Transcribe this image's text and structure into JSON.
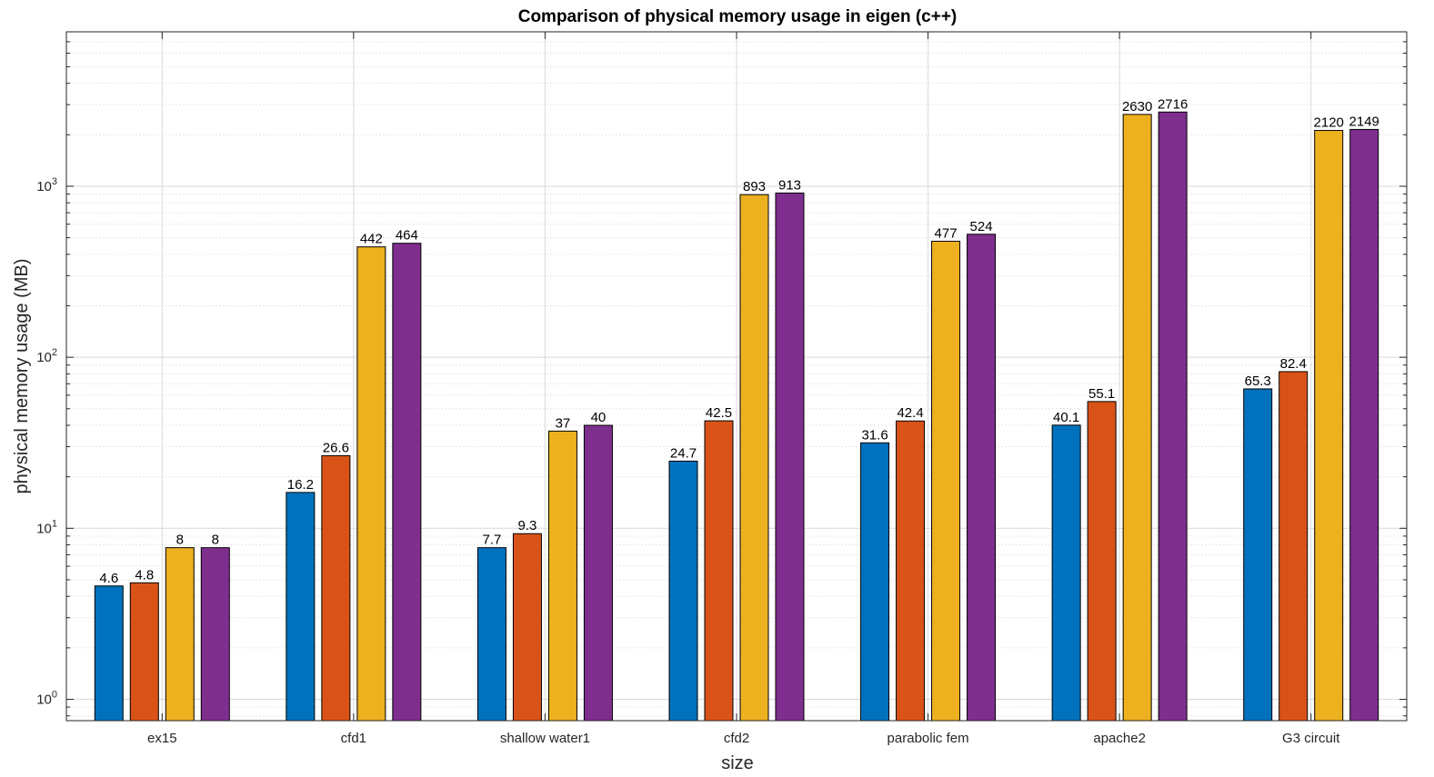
{
  "chart_data": {
    "type": "bar",
    "title": "Comparison of physical memory usage in eigen (c++)",
    "xlabel": "size",
    "ylabel": "physical memory usage (MB)",
    "yscale": "log",
    "ylim": [
      0.75,
      8000
    ],
    "yticks": [
      {
        "value": 1,
        "base": "10",
        "exp": "0"
      },
      {
        "value": 10,
        "base": "10",
        "exp": "1"
      },
      {
        "value": 100,
        "base": "10",
        "exp": "2"
      },
      {
        "value": 1000,
        "base": "10",
        "exp": "3"
      }
    ],
    "grid": true,
    "legend": "none",
    "categories": [
      "ex15",
      "cfd1",
      "shallow water1",
      "cfd2",
      "parabolic fem",
      "apache2",
      "G3 circuit"
    ],
    "series": [
      {
        "color": "#0072BD",
        "values": [
          4.6,
          16.2,
          7.7,
          24.7,
          31.6,
          40.1,
          65.3
        ],
        "labels": [
          "4.6",
          "16.2",
          "7.7",
          "24.7",
          "31.6",
          "40.1",
          "65.3"
        ]
      },
      {
        "color": "#D95319",
        "values": [
          4.8,
          26.6,
          9.3,
          42.5,
          42.4,
          55.1,
          82.4
        ],
        "labels": [
          "4.8",
          "26.6",
          "9.3",
          "42.5",
          "42.4",
          "55.1",
          "82.4"
        ]
      },
      {
        "color": "#EDB120",
        "values": [
          7.7,
          442,
          37,
          893,
          477,
          2630,
          2120
        ],
        "labels": [
          "8",
          "442",
          "37",
          "893",
          "477",
          "2630",
          "2120"
        ]
      },
      {
        "color": "#7E2F8E",
        "values": [
          7.7,
          464,
          40,
          913,
          524,
          2716,
          2149
        ],
        "labels": [
          "8",
          "464",
          "40",
          "913",
          "524",
          "2716",
          "2149"
        ]
      }
    ]
  }
}
